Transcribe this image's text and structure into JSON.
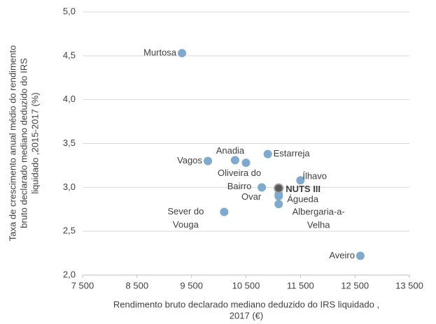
{
  "chart_data": {
    "type": "scatter",
    "xlabel": [
      "Rendimento bruto declarado mediano deduzido do IRS liquidado ,",
      "2017 (€)"
    ],
    "ylabel": [
      "Taxa de crescimento anual médio do rendimento",
      "bruto declarado mediano deduzido do IRS",
      "liquidado ,2015-2017 (%)"
    ],
    "xlim": [
      7500,
      13500
    ],
    "xticks": [
      {
        "value": 7500,
        "label": "7 500"
      },
      {
        "value": 8500,
        "label": "8 500"
      },
      {
        "value": 9500,
        "label": "9 500"
      },
      {
        "value": 10500,
        "label": "10 500"
      },
      {
        "value": 11500,
        "label": "11 500"
      },
      {
        "value": 12500,
        "label": "12 500"
      },
      {
        "value": 13500,
        "label": "13 500"
      }
    ],
    "ylim": [
      2,
      5
    ],
    "yticks": [
      {
        "value": 2,
        "label": "2,0"
      },
      {
        "value": 2.5,
        "label": "2,5"
      },
      {
        "value": 3,
        "label": "3,0"
      },
      {
        "value": 3.5,
        "label": "3,5"
      },
      {
        "value": 4,
        "label": "4,0"
      },
      {
        "value": 4.5,
        "label": "4,5"
      },
      {
        "value": 5,
        "label": "5,0"
      }
    ],
    "grid": true,
    "series": [
      {
        "color": "#7eaad0",
        "x": [
          9325,
          9800,
          10300,
          10500,
          10900,
          10790,
          10100,
          11100,
          11100,
          11100,
          11500,
          12600
        ],
        "values": [
          4.53,
          3.3,
          3.31,
          3.28,
          3.38,
          3.0,
          2.72,
          2.92,
          2.9,
          2.81,
          3.08,
          2.22
        ],
        "labels": [
          [
            "Murtosa"
          ],
          [
            "Vagos"
          ],
          [
            "Anadia"
          ],
          null,
          [
            "Estarreja"
          ],
          [
            "Oliveira do",
            "Bairro"
          ],
          [
            "Sever do",
            "Vouga"
          ],
          [
            "Ovar"
          ],
          [
            "Águeda"
          ],
          [
            "Albergaria-a-",
            "Velha"
          ],
          [
            "Ílhavo"
          ],
          [
            "Aveiro"
          ]
        ]
      },
      {
        "name": "NUTS III",
        "color": "#595959",
        "x": [
          11100
        ],
        "values": [
          2.99
        ]
      }
    ]
  }
}
